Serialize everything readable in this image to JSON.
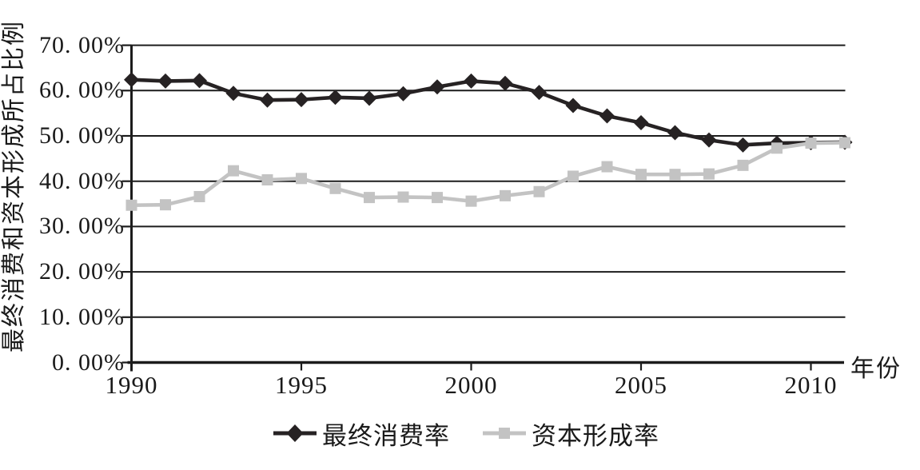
{
  "chart_data": {
    "type": "line",
    "title": "",
    "xlabel": "年份",
    "ylabel": "最终消费和资本形成所占比例",
    "x": [
      1990,
      1991,
      1992,
      1993,
      1994,
      1995,
      1996,
      1997,
      1998,
      1999,
      2000,
      2001,
      2002,
      2003,
      2004,
      2005,
      2006,
      2007,
      2008,
      2009,
      2010,
      2011
    ],
    "x_tick_years": [
      1990,
      1995,
      2000,
      2005,
      2010
    ],
    "x_tick_labels": [
      "1990",
      "1995",
      "2000",
      "2005",
      "2010"
    ],
    "y_tick_values": [
      70,
      60,
      50,
      40,
      30,
      20,
      10,
      0
    ],
    "y_tick_labels": [
      "70. 00%",
      "60. 00%",
      "50. 00%",
      "40. 00%",
      "30. 00%",
      "20. 00%",
      "10. 00%",
      "0. 00%"
    ],
    "ylim": [
      0,
      70
    ],
    "grid": "horizontal",
    "legend_position": "bottom-center",
    "series": [
      {
        "name": "最终消费率",
        "marker": "diamond",
        "color": "#262223",
        "values": [
          62.4,
          62.1,
          62.2,
          59.4,
          57.9,
          58.0,
          58.5,
          58.3,
          59.3,
          60.8,
          62.1,
          61.6,
          59.6,
          56.7,
          54.4,
          52.9,
          50.7,
          49.1,
          48.0,
          48.4,
          48.5,
          48.6
        ]
      },
      {
        "name": "资本形成率",
        "marker": "square",
        "color": "#c3c3c3",
        "values": [
          34.7,
          34.8,
          36.6,
          42.3,
          40.3,
          40.6,
          38.4,
          36.4,
          36.5,
          36.4,
          35.6,
          36.8,
          37.7,
          41.1,
          43.2,
          41.5,
          41.5,
          41.6,
          43.5,
          47.3,
          48.4,
          48.5
        ]
      }
    ]
  },
  "colors": {
    "axis": "#1c1c1c",
    "text": "#1a1a1a",
    "background": "#ffffff",
    "series1": "#262223",
    "series2": "#c3c3c3"
  }
}
